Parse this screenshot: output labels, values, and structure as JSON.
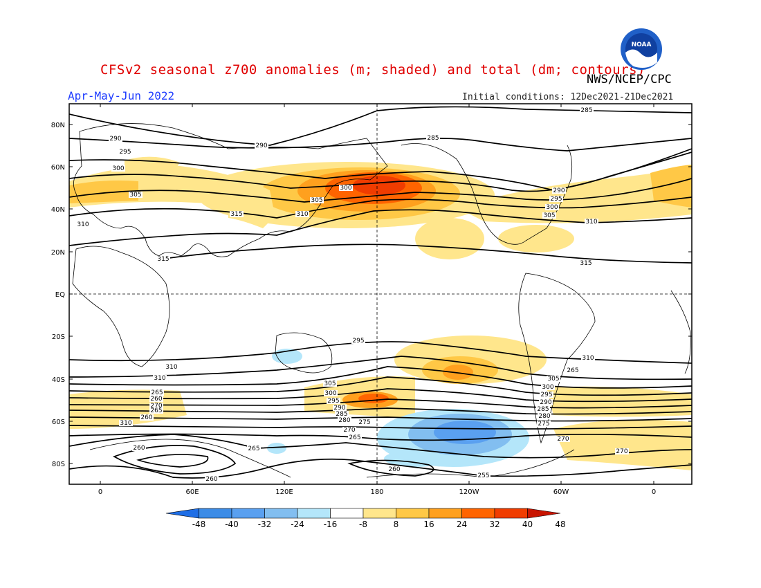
{
  "title": "CFSv2 seasonal z700 anomalies (m; shaded) and total (dm; contours)",
  "agency": "NWS/NCEP/CPC",
  "logo_text": "NOAA",
  "season": "Apr-May-Jun 2022",
  "initial_conditions": "Initial conditions: 12Dec2021-21Dec2021",
  "colors": {
    "title": "#e00000",
    "season": "#1e3cff",
    "neg": [
      "#1e6ee6",
      "#3c8ce6",
      "#5aa0f0",
      "#82bef0",
      "#b4e6fa"
    ],
    "pos": [
      "#ffe68c",
      "#ffc846",
      "#ffa01e",
      "#ff6400",
      "#f03c00",
      "#c81400"
    ]
  },
  "lat_labels": [
    "80N",
    "60N",
    "40N",
    "20N",
    "EQ",
    "20S",
    "40S",
    "60S",
    "80S"
  ],
  "lon_labels": [
    "0",
    "60E",
    "120E",
    "180",
    "120W",
    "60W",
    "0"
  ],
  "colorbar": {
    "ticks": [
      "-48",
      "-40",
      "-32",
      "-24",
      "-16",
      "-8",
      "8",
      "16",
      "24",
      "32",
      "40",
      "48"
    ]
  },
  "contour_labels": [
    "285",
    "290",
    "295",
    "300",
    "305",
    "310",
    "315",
    "290",
    "285",
    "290",
    "295",
    "300",
    "305",
    "310",
    "315",
    "315",
    "310",
    "305",
    "300",
    "295",
    "310",
    "310",
    "310",
    "305",
    "300",
    "295",
    "290",
    "285",
    "280",
    "275",
    "270",
    "265",
    "260",
    "255",
    "260",
    "265",
    "305",
    "300",
    "295",
    "290",
    "285",
    "280",
    "275",
    "270",
    "265",
    "270",
    "260",
    "265",
    "260",
    "270",
    "265",
    "260",
    "310",
    "305"
  ]
}
